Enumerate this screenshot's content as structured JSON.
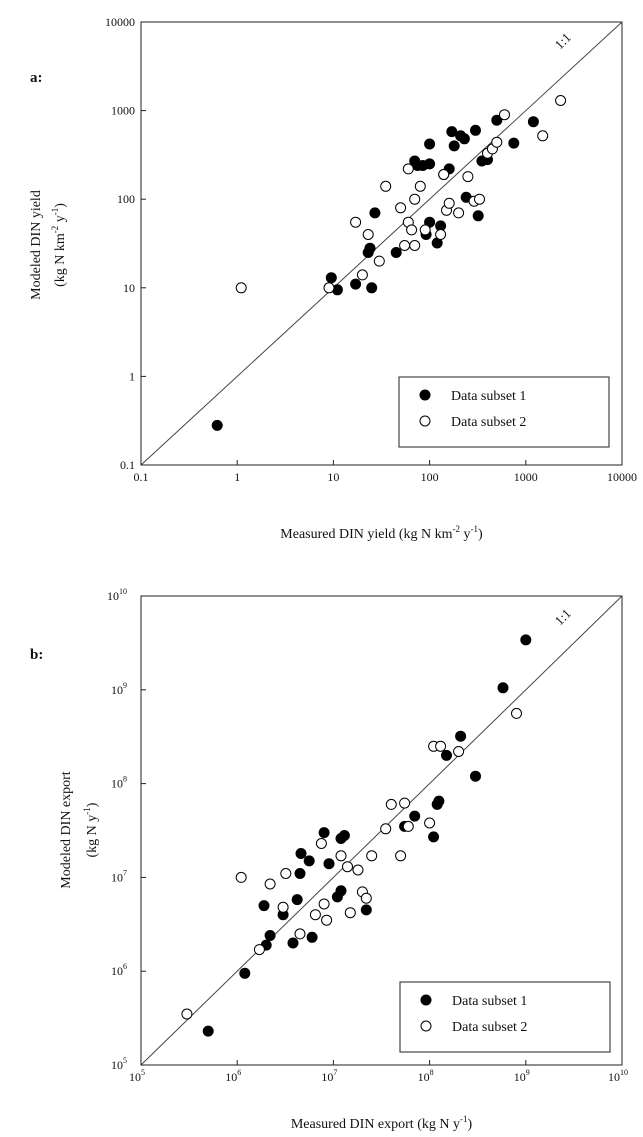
{
  "chart_data": [
    {
      "panel_label": "a:",
      "type": "scatter",
      "xscale": "log",
      "yscale": "log",
      "xlim": [
        0.1,
        10000
      ],
      "ylim": [
        0.1,
        10000
      ],
      "xticks": [
        {
          "value": 0.1,
          "label": "0.1"
        },
        {
          "value": 1,
          "label": "1"
        },
        {
          "value": 10,
          "label": "10"
        },
        {
          "value": 100,
          "label": "100"
        },
        {
          "value": 1000,
          "label": "1000"
        },
        {
          "value": 10000,
          "label": "10000"
        }
      ],
      "yticks": [
        {
          "value": 0.1,
          "label": "0.1"
        },
        {
          "value": 1,
          "label": "1"
        },
        {
          "value": 10,
          "label": "10"
        },
        {
          "value": 100,
          "label": "100"
        },
        {
          "value": 1000,
          "label": "1000"
        },
        {
          "value": 10000,
          "label": "10000"
        }
      ],
      "xlabel": "Measured DIN yield (kg N km-2 y-1)",
      "xlabel_parts": {
        "pre": "Measured DIN yield (kg N km",
        "sup1": "-2",
        "mid": " y",
        "sup2": "-1",
        "post": ")"
      },
      "ylabel_line1": "Modeled DIN yield",
      "ylabel_line2": "(kg N km-2 y-1)",
      "ylabel_parts": {
        "pre": "(kg N km",
        "sup1": "-2",
        "mid": " y",
        "sup2": "-1",
        "post": ")"
      },
      "reference_line_label": "1:1",
      "legend_position": "bottom-right",
      "series": [
        {
          "name": "Data subset 1",
          "marker": "filled-circle",
          "points": [
            [
              0.62,
              0.28
            ],
            [
              9.5,
              13
            ],
            [
              11,
              9.5
            ],
            [
              17,
              11
            ],
            [
              23,
              25
            ],
            [
              24,
              28
            ],
            [
              25,
              10
            ],
            [
              27,
              70
            ],
            [
              45,
              25
            ],
            [
              70,
              270
            ],
            [
              75,
              240
            ],
            [
              85,
              240
            ],
            [
              92,
              40
            ],
            [
              100,
              55
            ],
            [
              120,
              32
            ],
            [
              130,
              50
            ],
            [
              140,
              190
            ],
            [
              160,
              220
            ],
            [
              170,
              580
            ],
            [
              180,
              400
            ],
            [
              210,
              520
            ],
            [
              230,
              480
            ],
            [
              240,
              105
            ],
            [
              300,
              600
            ],
            [
              320,
              65
            ],
            [
              350,
              270
            ],
            [
              400,
              280
            ],
            [
              500,
              780
            ],
            [
              750,
              430
            ],
            [
              1200,
              750
            ],
            [
              100,
              420
            ],
            [
              100,
              250
            ]
          ]
        },
        {
          "name": "Data subset 2",
          "marker": "open-circle",
          "points": [
            [
              1.1,
              10
            ],
            [
              9,
              10
            ],
            [
              17,
              55
            ],
            [
              20,
              14
            ],
            [
              23,
              40
            ],
            [
              30,
              20
            ],
            [
              35,
              140
            ],
            [
              50,
              80
            ],
            [
              55,
              30
            ],
            [
              60,
              55
            ],
            [
              60,
              220
            ],
            [
              65,
              45
            ],
            [
              70,
              30
            ],
            [
              70,
              100
            ],
            [
              80,
              140
            ],
            [
              90,
              45
            ],
            [
              130,
              40
            ],
            [
              140,
              190
            ],
            [
              150,
              75
            ],
            [
              160,
              90
            ],
            [
              200,
              70
            ],
            [
              250,
              180
            ],
            [
              290,
              95
            ],
            [
              330,
              100
            ],
            [
              400,
              330
            ],
            [
              450,
              370
            ],
            [
              500,
              440
            ],
            [
              600,
              900
            ],
            [
              1500,
              520
            ],
            [
              2300,
              1300
            ]
          ]
        }
      ]
    },
    {
      "panel_label": "b:",
      "type": "scatter",
      "xscale": "log",
      "yscale": "log",
      "xlim": [
        100000,
        10000000000
      ],
      "ylim": [
        100000,
        10000000000
      ],
      "xticks": [
        {
          "value": 100000,
          "label": "10",
          "exp": "5"
        },
        {
          "value": 1000000,
          "label": "10",
          "exp": "6"
        },
        {
          "value": 10000000,
          "label": "10",
          "exp": "7"
        },
        {
          "value": 100000000,
          "label": "10",
          "exp": "8"
        },
        {
          "value": 1000000000,
          "label": "10",
          "exp": "9"
        },
        {
          "value": 10000000000,
          "label": "10",
          "exp": "10"
        }
      ],
      "yticks": [
        {
          "value": 100000,
          "label": "10",
          "exp": "5"
        },
        {
          "value": 1000000,
          "label": "10",
          "exp": "6"
        },
        {
          "value": 10000000,
          "label": "10",
          "exp": "7"
        },
        {
          "value": 100000000,
          "label": "10",
          "exp": "8"
        },
        {
          "value": 1000000000,
          "label": "10",
          "exp": "9"
        },
        {
          "value": 10000000000,
          "label": "10",
          "exp": "10"
        }
      ],
      "xlabel": "Measured DIN export (kg N y-1)",
      "xlabel_parts": {
        "pre": "Measured DIN export (kg N y",
        "sup1": "-1",
        "post": ")"
      },
      "ylabel_line1": "Modeled DIN export",
      "ylabel_line2": "(kg N y-1)",
      "ylabel_parts": {
        "pre": "(kg N y",
        "sup1": "-1",
        "post": ")"
      },
      "reference_line_label": "1:1",
      "legend_position": "bottom-right",
      "series": [
        {
          "name": "Data subset 1",
          "marker": "filled-circle",
          "points": [
            [
              500000,
              230000
            ],
            [
              1200000,
              950000
            ],
            [
              1900000,
              5000000
            ],
            [
              2000000,
              1900000
            ],
            [
              2200000,
              2400000
            ],
            [
              3000000,
              4000000
            ],
            [
              3800000,
              2000000
            ],
            [
              4200000,
              5800000
            ],
            [
              4500000,
              11000000
            ],
            [
              4600000,
              18000000
            ],
            [
              5600000,
              15000000
            ],
            [
              6000000,
              2300000
            ],
            [
              8000000,
              30000000
            ],
            [
              9000000,
              14000000
            ],
            [
              11000000,
              6200000
            ],
            [
              12000000,
              7200000
            ],
            [
              12000000,
              26000000
            ],
            [
              13000000,
              28000000
            ],
            [
              22000000,
              4500000
            ],
            [
              55000000,
              35000000
            ],
            [
              70000000,
              45000000
            ],
            [
              110000000,
              27000000
            ],
            [
              120000000,
              60000000
            ],
            [
              125000000,
              65000000
            ],
            [
              150000000,
              200000000
            ],
            [
              210000000,
              320000000
            ],
            [
              300000000,
              120000000
            ],
            [
              580000000,
              1050000000
            ],
            [
              1000000000,
              3400000000
            ]
          ]
        },
        {
          "name": "Data subset 2",
          "marker": "open-circle",
          "points": [
            [
              300000,
              350000
            ],
            [
              1100000,
              10000000
            ],
            [
              1700000,
              1700000
            ],
            [
              2200000,
              8500000
            ],
            [
              3000000,
              4800000
            ],
            [
              3200000,
              11000000
            ],
            [
              4500000,
              2500000
            ],
            [
              6500000,
              4000000
            ],
            [
              7500000,
              23000000
            ],
            [
              8000000,
              5200000
            ],
            [
              8500000,
              3500000
            ],
            [
              12000000,
              17000000
            ],
            [
              14000000,
              13000000
            ],
            [
              15000000,
              4200000
            ],
            [
              18000000,
              12000000
            ],
            [
              20000000,
              7000000
            ],
            [
              22000000,
              6000000
            ],
            [
              25000000,
              17000000
            ],
            [
              35000000,
              33000000
            ],
            [
              40000000,
              60000000
            ],
            [
              50000000,
              17000000
            ],
            [
              55000000,
              62000000
            ],
            [
              60000000,
              35000000
            ],
            [
              100000000,
              38000000
            ],
            [
              110000000,
              250000000
            ],
            [
              130000000,
              250000000
            ],
            [
              200000000,
              220000000
            ],
            [
              800000000,
              560000000
            ]
          ]
        }
      ]
    }
  ]
}
